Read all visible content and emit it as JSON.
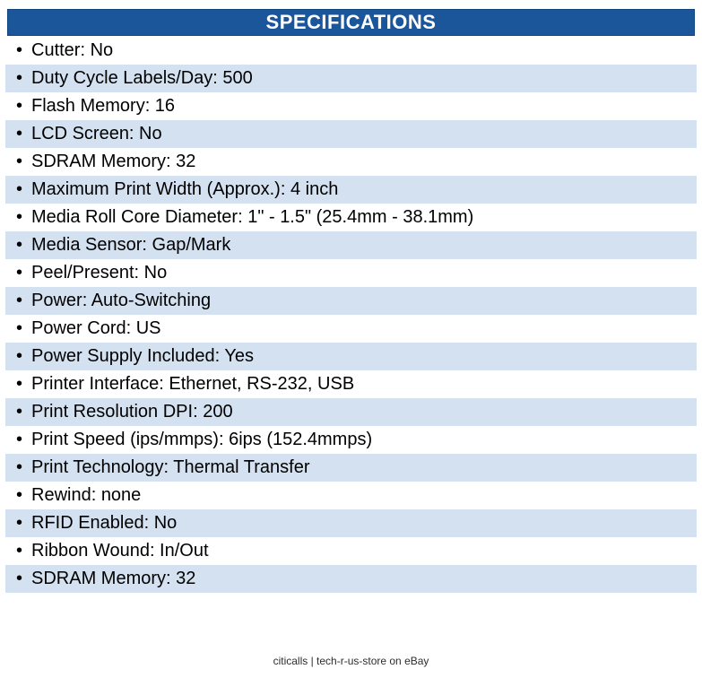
{
  "header": {
    "title": "SPECIFICATIONS",
    "bg_color": "#1b569b",
    "border_color": "#10457f",
    "text_color": "#ffffff"
  },
  "list": {
    "bullet_glyph": "•",
    "alt_row_bg": "#d3e1f0",
    "text_color": "#000000"
  },
  "specs": [
    {
      "label": "Cutter",
      "value": "No"
    },
    {
      "label": "Duty Cycle Labels/Day",
      "value": "500"
    },
    {
      "label": "Flash Memory",
      "value": "16"
    },
    {
      "label": "LCD Screen",
      "value": "No"
    },
    {
      "label": "SDRAM Memory",
      "value": "32"
    },
    {
      "label": "Maximum Print Width (Approx.)",
      "value": "4 inch"
    },
    {
      "label": "Media Roll Core Diameter",
      "value": "1\" - 1.5\" (25.4mm - 38.1mm)"
    },
    {
      "label": "Media Sensor",
      "value": "Gap/Mark"
    },
    {
      "label": "Peel/Present",
      "value": "No"
    },
    {
      "label": "Power",
      "value": "Auto-Switching"
    },
    {
      "label": "Power Cord",
      "value": "US"
    },
    {
      "label": "Power Supply Included",
      "value": "Yes"
    },
    {
      "label": "Printer Interface",
      "value": "Ethernet, RS-232, USB"
    },
    {
      "label": "Print Resolution DPI",
      "value": "200"
    },
    {
      "label": "Print Speed (ips/mmps)",
      "value": "6ips (152.4mmps)"
    },
    {
      "label": "Print Technology",
      "value": "Thermal Transfer"
    },
    {
      "label": "Rewind",
      "value": "none"
    },
    {
      "label": "RFID Enabled",
      "value": "No"
    },
    {
      "label": "Ribbon Wound",
      "value": "In/Out"
    },
    {
      "label": "SDRAM Memory",
      "value": "32"
    }
  ],
  "footer": {
    "text": "citicalls | tech-r-us-store on eBay"
  }
}
